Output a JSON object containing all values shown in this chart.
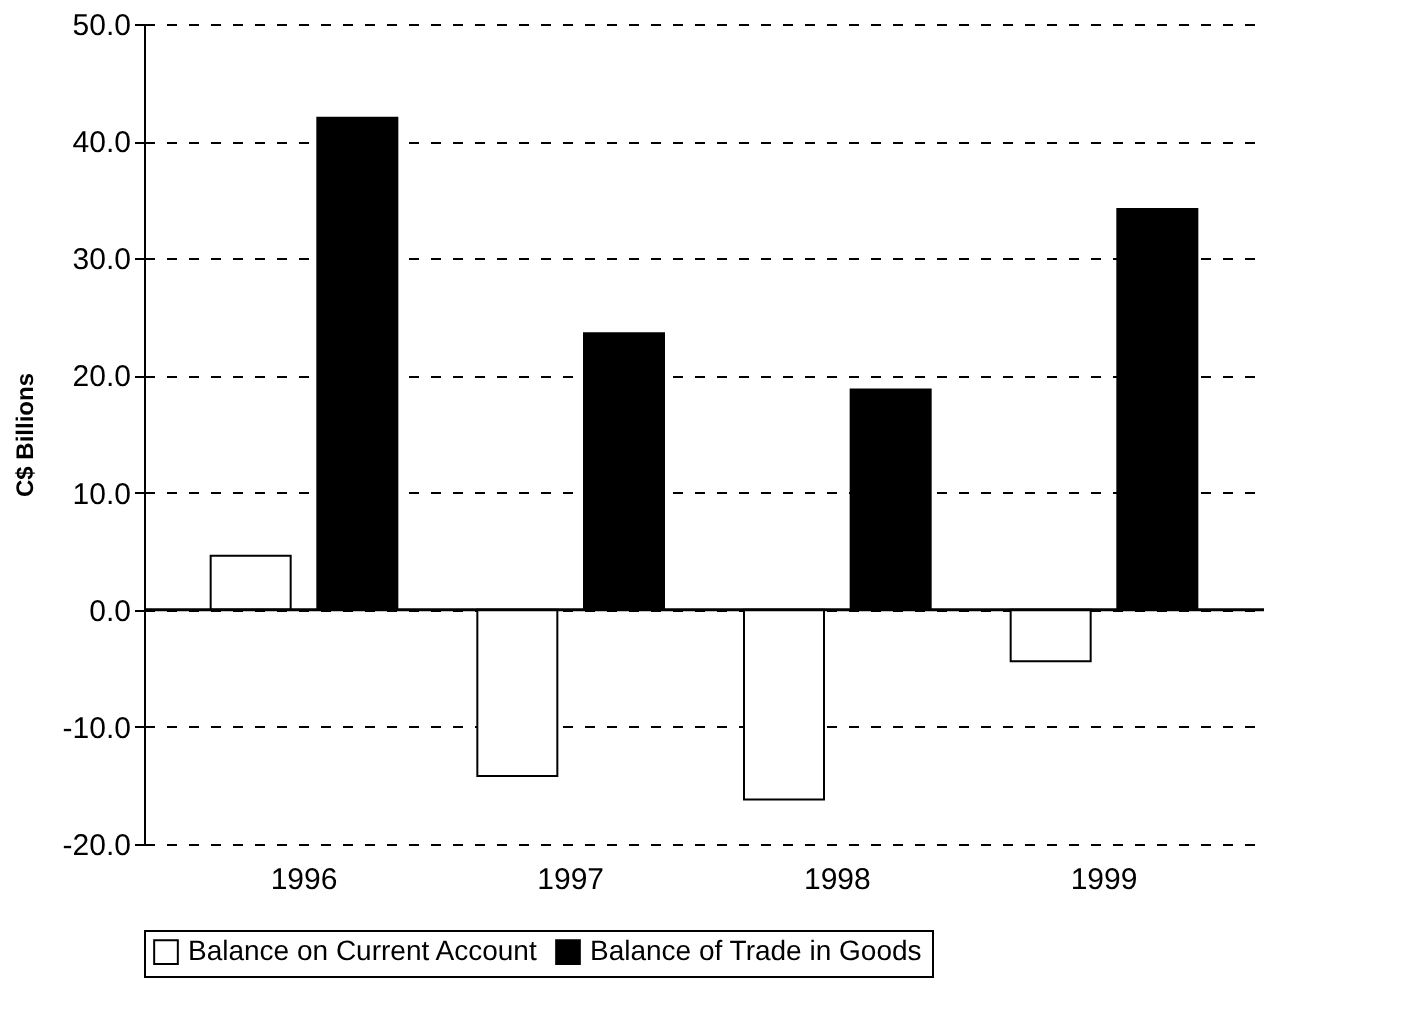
{
  "chart_data": {
    "type": "bar",
    "ylabel": "C$ Billions",
    "categories": [
      "1996",
      "1997",
      "1998",
      "1999"
    ],
    "series": [
      {
        "name": "Balance on Current Account",
        "color": "#ffffff",
        "values": [
          4.6,
          -14.2,
          -16.2,
          -4.4
        ]
      },
      {
        "name": "Balance of Trade in Goods",
        "color": "#000000",
        "values": [
          42.0,
          23.6,
          18.8,
          34.2
        ]
      }
    ],
    "ylim": [
      -20,
      50
    ],
    "yticks": [
      {
        "value": -20,
        "label": "-20.0"
      },
      {
        "value": -10,
        "label": "-10.0"
      },
      {
        "value": 0,
        "label": "0.0"
      },
      {
        "value": 10,
        "label": "10.0"
      },
      {
        "value": 20,
        "label": "20.0"
      },
      {
        "value": 30,
        "label": "30.0"
      },
      {
        "value": 40,
        "label": "40.0"
      },
      {
        "value": 50,
        "label": "50.0"
      }
    ],
    "grid": "y",
    "legend": "bottom"
  }
}
